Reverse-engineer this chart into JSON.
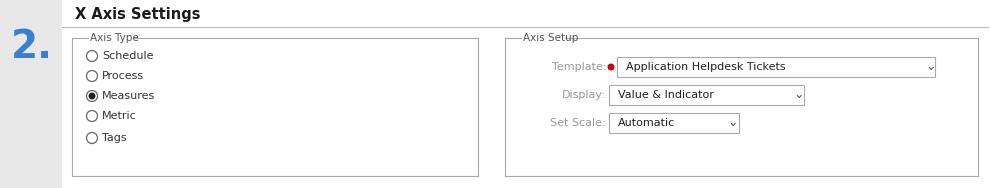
{
  "bg_outer": "#e8e8e8",
  "bg_white": "#ffffff",
  "bg_light": "#f2f2f2",
  "step_number": "2.",
  "step_color": "#3a7fd4",
  "title": "X Axis Settings",
  "title_color": "#1a1a1a",
  "title_font_size": 10.5,
  "separator_color": "#bbbbbb",
  "axis_type_label": "Axis Type",
  "axis_type_options": [
    "Schedule",
    "Process",
    "Measures",
    "Metric",
    "Tags"
  ],
  "axis_type_selected": 2,
  "axis_setup_label": "Axis Setup",
  "template_label": "Template:",
  "template_value": "Application Helpdesk Tickets",
  "template_dot_color": "#cc0000",
  "display_label": "Display:",
  "display_value": "Value & Indicator",
  "setscale_label": "Set Scale:",
  "setscale_value": "Automatic",
  "label_color": "#999999",
  "option_color": "#333333",
  "dropdown_text_color": "#222222",
  "dropdown_border": "#aaaaaa",
  "box_border": "#aaaaaa",
  "radio_border": "#666666",
  "radio_fill_selected": "#222222",
  "groupbox_label_color": "#555555"
}
